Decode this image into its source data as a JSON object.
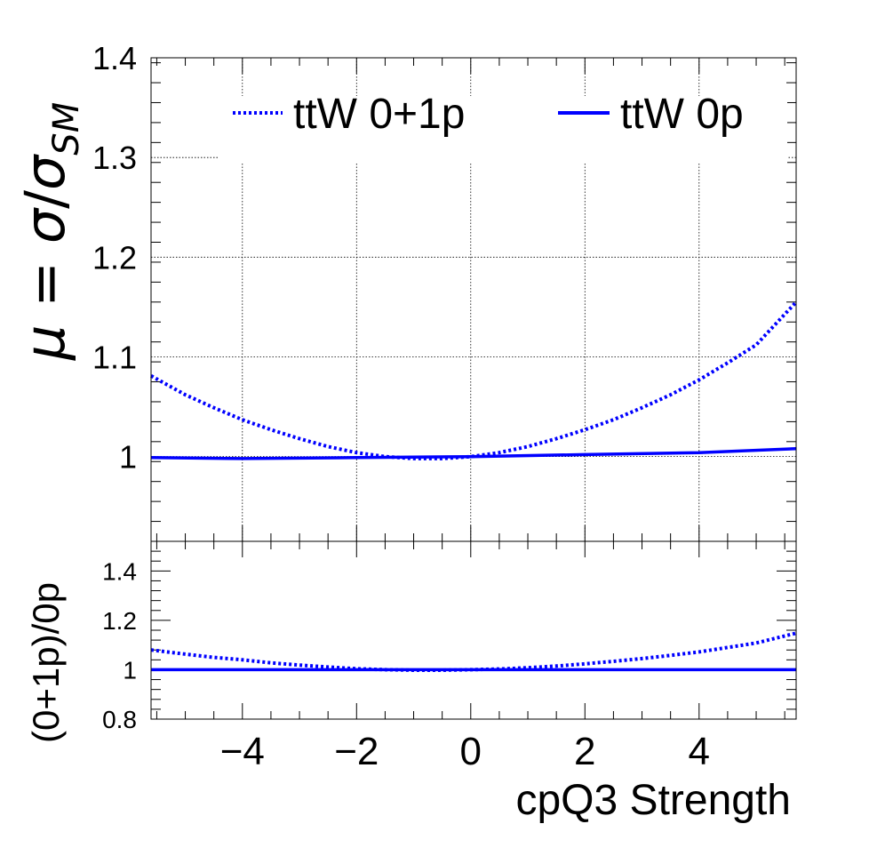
{
  "chart_data": [
    {
      "type": "line",
      "panel": "main",
      "ylabel": "μ = σ/σSM",
      "ylabel_parts": {
        "mu": "μ",
        "eq": " = ",
        "sigma": "σ",
        "slash": "/",
        "sigma2": "σ",
        "sub": "SM"
      },
      "xlim": [
        -5.6,
        5.7
      ],
      "ylim": [
        0.915,
        1.4
      ],
      "yticks": [
        1,
        1.1,
        1.2,
        1.3,
        1.4
      ],
      "ytick_labels": [
        "1",
        "1.1",
        "1.2",
        "1.3",
        "1.4"
      ],
      "xticks": [
        -4,
        -2,
        0,
        2,
        4
      ],
      "grid": true,
      "legend_position": "top",
      "series": [
        {
          "name": "ttW 0+1p",
          "style": "dotted",
          "color": "#0000ff",
          "x": [
            -5.6,
            -5,
            -4.5,
            -4,
            -3.5,
            -3,
            -2.5,
            -2,
            -1.5,
            -1,
            -0.5,
            0,
            0.5,
            1,
            1.5,
            2,
            2.5,
            3,
            3.5,
            4,
            4.5,
            5,
            5.7
          ],
          "y": [
            1.081,
            1.062,
            1.049,
            1.037,
            1.027,
            1.018,
            1.01,
            1.004,
            1.0,
            0.998,
            0.998,
            1.0,
            1.004,
            1.01,
            1.018,
            1.027,
            1.037,
            1.049,
            1.062,
            1.077,
            1.094,
            1.112,
            1.155
          ]
        },
        {
          "name": "ttW 0p",
          "style": "solid",
          "color": "#0000ff",
          "x": [
            -5.6,
            -4,
            -2,
            0,
            2,
            4,
            5.7
          ],
          "y": [
            0.999,
            0.998,
            0.999,
            1.0,
            1.002,
            1.004,
            1.008
          ]
        }
      ]
    },
    {
      "type": "line",
      "panel": "ratio",
      "ylabel": "(0+1p)/0p",
      "xlabel": "cpQ3 Strength",
      "xlim": [
        -5.6,
        5.7
      ],
      "ylim": [
        0.8,
        1.52
      ],
      "yticks": [
        0.8,
        1,
        1.2,
        1.4
      ],
      "ytick_labels": [
        "0.8",
        "1",
        "1.2",
        "1.4"
      ],
      "xticks": [
        -4,
        -2,
        0,
        2,
        4
      ],
      "xtick_labels": [
        "−4",
        "−2",
        "0",
        "2",
        "4"
      ],
      "grid": false,
      "series": [
        {
          "style": "dotted",
          "color": "#0000ff",
          "x": [
            -5.6,
            -5,
            -4.5,
            -4,
            -3.5,
            -3,
            -2.5,
            -2,
            -1.5,
            -1,
            -0.5,
            0,
            0.5,
            1,
            1.5,
            2,
            2.5,
            3,
            3.5,
            4,
            4.5,
            5,
            5.7
          ],
          "y": [
            1.08,
            1.063,
            1.05,
            1.04,
            1.028,
            1.019,
            1.011,
            1.004,
            1.0,
            0.998,
            0.998,
            1.0,
            1.003,
            1.008,
            1.015,
            1.024,
            1.034,
            1.045,
            1.058,
            1.072,
            1.09,
            1.108,
            1.148
          ]
        },
        {
          "style": "solid",
          "color": "#0000ff",
          "x": [
            -5.6,
            5.7
          ],
          "y": [
            1.0,
            1.0
          ]
        }
      ]
    }
  ]
}
